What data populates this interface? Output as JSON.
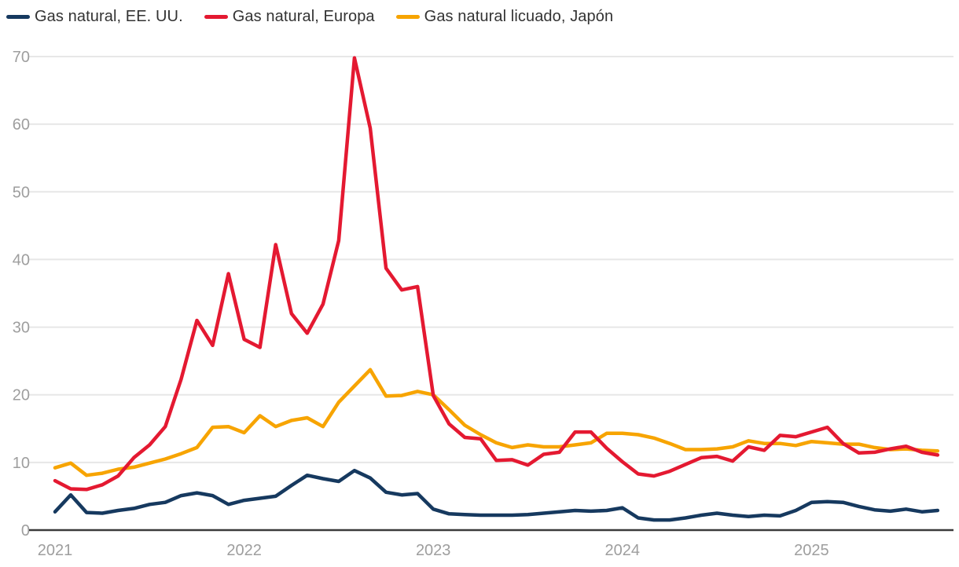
{
  "chart": {
    "legend": [
      {
        "label": "Gas natural, EE. UU.",
        "color": "#16395f"
      },
      {
        "label": "Gas natural, Europa",
        "color": "#e41931"
      },
      {
        "label": "Gas natural licuado, Japón",
        "color": "#f7a400"
      }
    ],
    "colors": {
      "background": "#ffffff",
      "gridline": "#e7e7e7",
      "axis_line": "#3a3a3a",
      "tick_label": "#9e9e9e",
      "legend_text": "#333333"
    },
    "y_axis": {
      "ticks": [
        0,
        10,
        20,
        30,
        40,
        50,
        60,
        70
      ]
    },
    "x_axis": {
      "ticks": [
        "2021",
        "2022",
        "2023",
        "2024",
        "2025"
      ]
    }
  },
  "chart_data": {
    "type": "line",
    "title": "",
    "xlabel": "",
    "ylabel": "",
    "ylim": [
      0,
      70
    ],
    "grid": "horizontal",
    "legend_position": "top-left",
    "frequency": "monthly",
    "x": [
      "2021-01",
      "2021-02",
      "2021-03",
      "2021-04",
      "2021-05",
      "2021-06",
      "2021-07",
      "2021-08",
      "2021-09",
      "2021-10",
      "2021-11",
      "2021-12",
      "2022-01",
      "2022-02",
      "2022-03",
      "2022-04",
      "2022-05",
      "2022-06",
      "2022-07",
      "2022-08",
      "2022-09",
      "2022-10",
      "2022-11",
      "2022-12",
      "2023-01",
      "2023-02",
      "2023-03",
      "2023-04",
      "2023-05",
      "2023-06",
      "2023-07",
      "2023-08",
      "2023-09",
      "2023-10",
      "2023-11",
      "2023-12",
      "2024-01",
      "2024-02",
      "2024-03",
      "2024-04",
      "2024-05",
      "2024-06",
      "2024-07",
      "2024-08",
      "2024-09",
      "2024-10",
      "2024-11",
      "2024-12",
      "2025-01",
      "2025-02",
      "2025-03",
      "2025-04",
      "2025-05",
      "2025-06",
      "2025-07",
      "2025-08",
      "2025-09"
    ],
    "series": [
      {
        "id": "us",
        "name": "Gas natural, EE. UU.",
        "color": "#16395f",
        "values": [
          2.7,
          5.2,
          2.6,
          2.5,
          2.9,
          3.2,
          3.8,
          4.1,
          5.1,
          5.5,
          5.1,
          3.8,
          4.4,
          4.7,
          5.0,
          6.6,
          8.1,
          7.6,
          7.2,
          8.8,
          7.7,
          5.6,
          5.2,
          5.4,
          3.1,
          2.4,
          2.3,
          2.2,
          2.2,
          2.2,
          2.3,
          2.5,
          2.7,
          2.9,
          2.8,
          2.9,
          3.3,
          1.8,
          1.5,
          1.5,
          1.8,
          2.2,
          2.5,
          2.2,
          2.0,
          2.2,
          2.1,
          2.9,
          4.1,
          4.2,
          4.1,
          3.5,
          3.0,
          2.8,
          3.1,
          2.7,
          2.9
        ]
      },
      {
        "id": "europe",
        "name": "Gas natural, Europa",
        "color": "#e41931",
        "values": [
          7.3,
          6.1,
          6.0,
          6.7,
          8.0,
          10.7,
          12.6,
          15.3,
          22.3,
          31.0,
          27.3,
          37.9,
          28.2,
          27.0,
          42.2,
          32.0,
          29.1,
          33.4,
          42.8,
          69.8,
          59.4,
          38.7,
          35.5,
          36.0,
          19.9,
          15.7,
          13.7,
          13.5,
          10.3,
          10.4,
          9.6,
          11.2,
          11.5,
          14.5,
          14.5,
          12.1,
          10.1,
          8.3,
          8.0,
          8.7,
          9.7,
          10.7,
          10.9,
          10.2,
          12.3,
          11.8,
          14.0,
          13.8,
          14.5,
          15.2,
          12.8,
          11.4,
          11.5,
          12.0,
          12.4,
          11.5,
          11.1
        ]
      },
      {
        "id": "japan",
        "name": "Gas natural licuado, Japón",
        "color": "#f7a400",
        "values": [
          9.2,
          9.9,
          8.1,
          8.4,
          9.0,
          9.3,
          9.9,
          10.5,
          11.3,
          12.2,
          15.2,
          15.3,
          14.4,
          16.9,
          15.3,
          16.2,
          16.6,
          15.3,
          18.9,
          21.3,
          23.7,
          19.8,
          19.9,
          20.5,
          20.0,
          17.8,
          15.5,
          14.1,
          12.9,
          12.2,
          12.6,
          12.3,
          12.3,
          12.6,
          12.9,
          14.3,
          14.3,
          14.1,
          13.6,
          12.8,
          11.9,
          11.9,
          12.0,
          12.3,
          13.2,
          12.8,
          12.8,
          12.5,
          13.1,
          12.9,
          12.7,
          12.7,
          12.2,
          11.9,
          12.0,
          11.8,
          11.7
        ]
      }
    ]
  }
}
